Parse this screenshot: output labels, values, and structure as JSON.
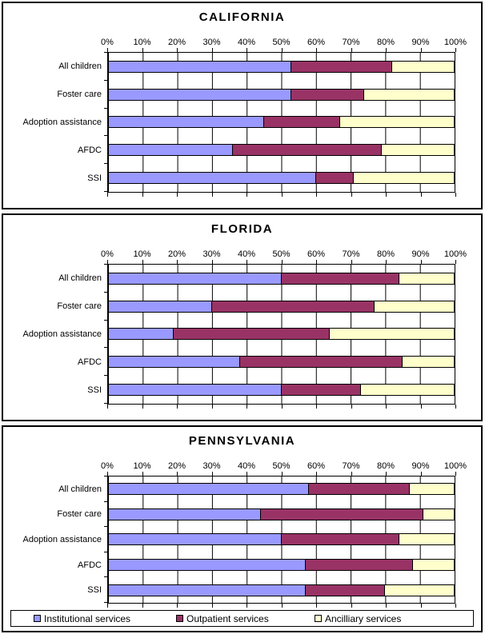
{
  "colors": {
    "institutional": "#9999FF",
    "outpatient": "#993366",
    "ancilliary": "#FFFFCC",
    "axis": "#000000",
    "background": "#FFFFFF"
  },
  "legend": [
    {
      "label": "Institutional services",
      "color": "#9999FF"
    },
    {
      "label": "Outpatient services",
      "color": "#993366"
    },
    {
      "label": "Ancilliary services",
      "color": "#FFFFCC"
    }
  ],
  "chart_data": [
    {
      "type": "bar",
      "stacked": true,
      "orientation": "horizontal",
      "title": "CALIFORNIA",
      "categories": [
        "All children",
        "Foster care",
        "Adoption assistance",
        "AFDC",
        "SSI"
      ],
      "series": [
        {
          "name": "Institutional services",
          "color": "#9999FF",
          "values": [
            53,
            53,
            45,
            36,
            60
          ]
        },
        {
          "name": "Outpatient services",
          "color": "#993366",
          "values": [
            29,
            21,
            22,
            43,
            11
          ]
        },
        {
          "name": "Ancilliary services",
          "color": "#FFFFCC",
          "values": [
            18,
            26,
            33,
            21,
            29
          ]
        }
      ],
      "xlim": [
        0,
        100
      ],
      "x_tick_labels": [
        "0%",
        "10%",
        "20%",
        "30%",
        "40%",
        "50%",
        "60%",
        "70%",
        "80%",
        "90%",
        "100%"
      ],
      "grid": true,
      "legend_position": "none"
    },
    {
      "type": "bar",
      "stacked": true,
      "orientation": "horizontal",
      "title": "FLORIDA",
      "categories": [
        "All children",
        "Foster care",
        "Adoption assistance",
        "AFDC",
        "SSI"
      ],
      "series": [
        {
          "name": "Institutional services",
          "color": "#9999FF",
          "values": [
            50,
            30,
            19,
            38,
            50
          ]
        },
        {
          "name": "Outpatient services",
          "color": "#993366",
          "values": [
            34,
            47,
            45,
            47,
            23
          ]
        },
        {
          "name": "Ancilliary services",
          "color": "#FFFFCC",
          "values": [
            16,
            23,
            36,
            15,
            27
          ]
        }
      ],
      "xlim": [
        0,
        100
      ],
      "x_tick_labels": [
        "0%",
        "10%",
        "20%",
        "30%",
        "40%",
        "50%",
        "60%",
        "70%",
        "80%",
        "90%",
        "100%"
      ],
      "grid": true,
      "legend_position": "none"
    },
    {
      "type": "bar",
      "stacked": true,
      "orientation": "horizontal",
      "title": "PENNSYLVANIA",
      "categories": [
        "All children",
        "Foster care",
        "Adoption assistance",
        "AFDC",
        "SSI"
      ],
      "series": [
        {
          "name": "Institutional services",
          "color": "#9999FF",
          "values": [
            58,
            44,
            50,
            57,
            57
          ]
        },
        {
          "name": "Outpatient services",
          "color": "#993366",
          "values": [
            29,
            47,
            34,
            31,
            23
          ]
        },
        {
          "name": "Ancilliary services",
          "color": "#FFFFCC",
          "values": [
            13,
            9,
            16,
            12,
            20
          ]
        }
      ],
      "xlim": [
        0,
        100
      ],
      "x_tick_labels": [
        "0%",
        "10%",
        "20%",
        "30%",
        "40%",
        "50%",
        "60%",
        "70%",
        "80%",
        "90%",
        "100%"
      ],
      "grid": true,
      "legend_position": "bottom"
    }
  ]
}
